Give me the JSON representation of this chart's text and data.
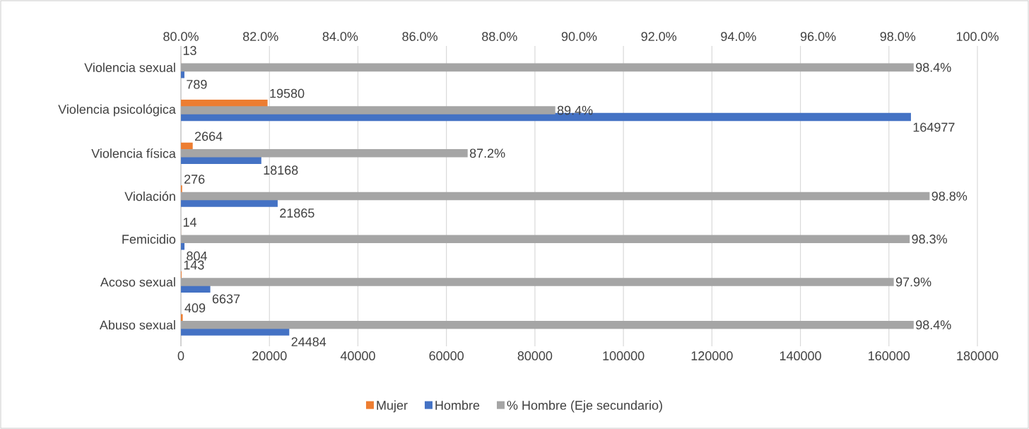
{
  "chart_data": {
    "type": "bar",
    "orientation": "horizontal",
    "categories": [
      "Violencia sexual",
      "Violencia psicológica",
      "Violencia física",
      "Violación",
      "Femicidio",
      "Acoso sexual",
      "Abuso sexual"
    ],
    "series": [
      {
        "name": "Mujer",
        "color": "#ed7d31",
        "values": [
          13,
          19580,
          2664,
          276,
          14,
          143,
          409
        ]
      },
      {
        "name": "Hombre",
        "color": "#4472c4",
        "values": [
          789,
          164977,
          18168,
          21865,
          804,
          6637,
          24484
        ]
      },
      {
        "name": "% Hombre (Eje secundario)",
        "color": "#a5a5a5",
        "axis": "x2",
        "values": [
          98.4,
          89.4,
          87.2,
          98.8,
          98.3,
          97.9,
          98.4
        ],
        "value_labels": [
          "98.4%",
          "89.4%",
          "87.2%",
          "98.8%",
          "98.3%",
          "97.9%",
          "98.4%"
        ]
      }
    ],
    "xlim": [
      0,
      180000
    ],
    "xticks": [
      0,
      20000,
      40000,
      60000,
      80000,
      100000,
      120000,
      140000,
      160000,
      180000
    ],
    "x2lim": [
      80,
      100
    ],
    "x2ticks": [
      {
        "value": 80,
        "label": "80.0%"
      },
      {
        "value": 82,
        "label": "82.0%"
      },
      {
        "value": 84,
        "label": "84.0%"
      },
      {
        "value": 86,
        "label": "86.0%"
      },
      {
        "value": 88,
        "label": "88.0%"
      },
      {
        "value": 90,
        "label": "90.0%"
      },
      {
        "value": 92,
        "label": "92.0%"
      },
      {
        "value": 94,
        "label": "94.0%"
      },
      {
        "value": 96,
        "label": "96.0%"
      },
      {
        "value": 98,
        "label": "98.0%"
      },
      {
        "value": 100,
        "label": "100.0%"
      }
    ],
    "grid": "x",
    "legend": "bottom",
    "data_labels": true
  }
}
